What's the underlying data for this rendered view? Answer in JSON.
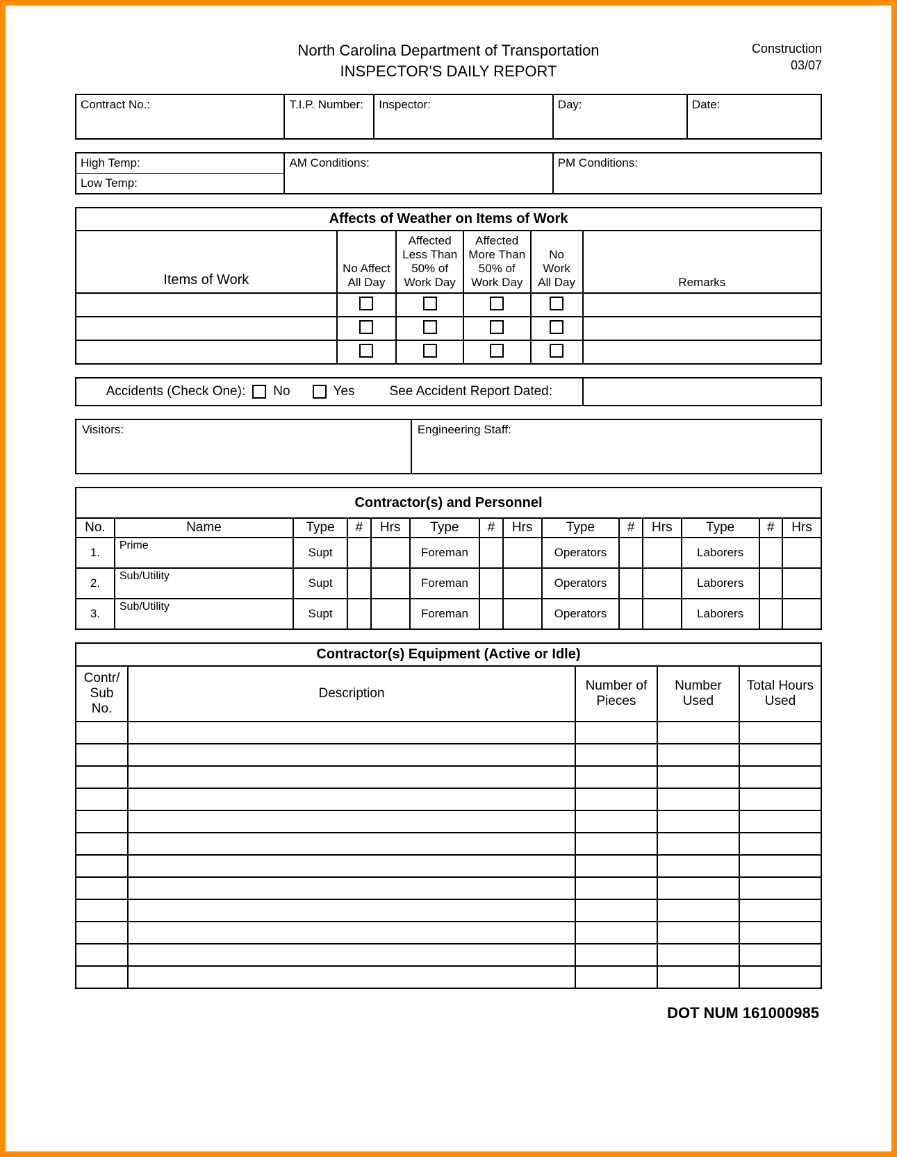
{
  "header": {
    "department": "North Carolina Department of Transportation",
    "title": "INSPECTOR'S DAILY REPORT",
    "right1": "Construction",
    "right2": "03/07"
  },
  "info1": {
    "contract_no": "Contract No.:",
    "tip_number": "T.I.P. Number:",
    "inspector": "Inspector:",
    "day": "Day:",
    "date": "Date:"
  },
  "info2": {
    "high_temp": "High Temp:",
    "low_temp": "Low Temp:",
    "am_cond": "AM Conditions:",
    "pm_cond": "PM Conditions:"
  },
  "weather": {
    "title": "Affects of Weather on Items of Work",
    "items_of_work": "Items of Work",
    "col_no_affect": "No Affect All Day",
    "col_lt50": "Affected Less Than 50% of Work Day",
    "col_gt50": "Affected More Than 50% of Work Day",
    "col_nowork": "No Work All Day",
    "col_remarks": "Remarks"
  },
  "accidents": {
    "label": "Accidents (Check One):",
    "no": "No",
    "yes": "Yes",
    "see": "See Accident Report Dated:"
  },
  "visitors": {
    "visitors": "Visitors:",
    "eng_staff": "Engineering Staff:"
  },
  "contractors": {
    "title": "Contractor(s) and Personnel",
    "h_no": "No.",
    "h_name": "Name",
    "h_type": "Type",
    "h_num": "#",
    "h_hrs": "Hrs",
    "rows": [
      {
        "no": "1.",
        "name": "Prime",
        "t1": "Supt",
        "t2": "Foreman",
        "t3": "Operators",
        "t4": "Laborers"
      },
      {
        "no": "2.",
        "name": "Sub/Utility",
        "t1": "Supt",
        "t2": "Foreman",
        "t3": "Operators",
        "t4": "Laborers"
      },
      {
        "no": "3.",
        "name": "Sub/Utility",
        "t1": "Supt",
        "t2": "Foreman",
        "t3": "Operators",
        "t4": "Laborers"
      }
    ]
  },
  "equipment": {
    "title": "Contractor(s) Equipment (Active or Idle)",
    "h_contr": "Contr/ Sub No.",
    "h_desc": "Description",
    "h_pieces": "Number of Pieces",
    "h_used": "Number Used",
    "h_hours": "Total Hours Used",
    "row_count": 12
  },
  "footer": "DOT NUM 161000985",
  "colors": {
    "frame": "#ff8c00",
    "border": "#000000",
    "background": "#ffffff"
  },
  "typography": {
    "base_font": "Arial",
    "header_size_pt": 16,
    "body_size_pt": 13,
    "section_title_weight": "bold"
  }
}
